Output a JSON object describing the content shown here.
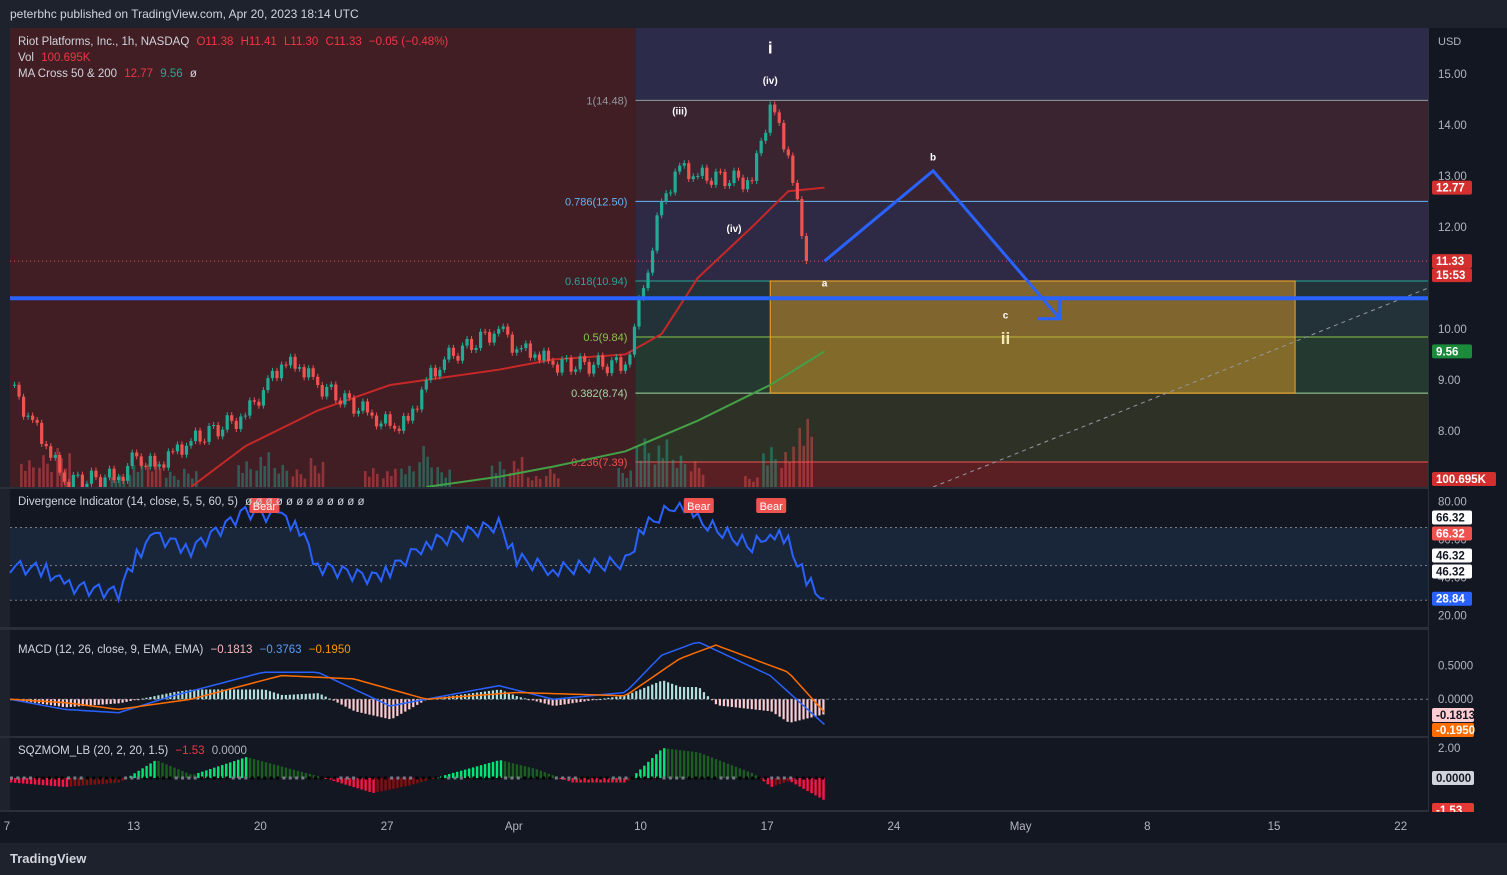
{
  "header": {
    "publisher": "peterbhc published on TradingView.com, Apr 20, 2023 18:14 UTC"
  },
  "footer": {
    "logo": "TradingView"
  },
  "colors": {
    "background": "#131722",
    "up": "#22ab94",
    "down": "#ef5350",
    "ma50": "#c62828",
    "ma200": "#43a047",
    "divergence": "#2962ff",
    "macd": "#2962ff",
    "signal": "#ff6d00",
    "fib_zone": "#f5a623",
    "projection": "#2962ff"
  },
  "main_legend": {
    "symbol": "Riot Platforms, Inc., 1h, NASDAQ",
    "open": "O11.38",
    "high": "H11.41",
    "low": "L11.30",
    "close": "C11.33",
    "change": "−0.05 (−0.48%)",
    "vol_label": "Vol",
    "vol_value": "100.695K",
    "ma_label": "MA Cross 50 & 200",
    "ma50": "12.77",
    "ma200": "9.56",
    "ma_extra": "ø"
  },
  "div_legend": {
    "label": "Divergence Indicator (14, close, 5, 5, 60, 5)",
    "extra": "ø ø ø ø ø ø ø ø ø ø ø ø"
  },
  "macd_legend": {
    "label": "MACD (12, 26, close, 9, EMA, EMA)",
    "hist": "−0.1813",
    "macd": "−0.3763",
    "signal": "−0.1950"
  },
  "sqz_legend": {
    "label": "SQZMOM_LB (20, 2, 20, 1.5)",
    "val": "−1.53",
    "val2": "0.0000"
  },
  "chart_data": [
    {
      "type": "candlestick",
      "title": "Riot Platforms, Inc., 1h, NASDAQ",
      "currency": "USD",
      "price_axis_ticks": [
        8.0,
        9.0,
        10.0,
        11.0,
        12.0,
        13.0,
        14.0,
        15.0
      ],
      "ylim": [
        6.9,
        15.9
      ],
      "x_ticks": [
        "7",
        "13",
        "20",
        "27",
        "Apr",
        "10",
        "17",
        "24",
        "May",
        "8",
        "15",
        "22"
      ],
      "last_price": 11.33,
      "countdown": "15:53",
      "ma50_last": 12.77,
      "ma200_last": 9.56,
      "volume_last": "100.695K",
      "close_path": [
        [
          "Mar 7",
          8.9
        ],
        [
          "Mar 8",
          8.3
        ],
        [
          "Mar 9",
          7.7
        ],
        [
          "Mar 10",
          7.0
        ],
        [
          "Mar 13",
          7.1
        ],
        [
          "Mar 14",
          7.5
        ],
        [
          "Mar 15",
          7.3
        ],
        [
          "Mar 16",
          7.6
        ],
        [
          "Mar 17",
          7.8
        ],
        [
          "Mar 20",
          8.3
        ],
        [
          "Mar 21",
          8.8
        ],
        [
          "Mar 22",
          9.3
        ],
        [
          "Mar 23",
          9.25
        ],
        [
          "Mar 24",
          8.9
        ],
        [
          "Mar 27",
          8.3
        ],
        [
          "Mar 28",
          8.1
        ],
        [
          "Mar 29",
          8.2
        ],
        [
          "Mar 30",
          9.0
        ],
        [
          "Mar 31",
          9.4
        ],
        [
          "Apr 3",
          10.0
        ],
        [
          "Apr 4",
          9.6
        ],
        [
          "Apr 5",
          9.5
        ],
        [
          "Apr 6",
          9.3
        ],
        [
          "Apr 10",
          9.3
        ],
        [
          "Apr 11",
          10.8
        ],
        [
          "Apr 12",
          12.5
        ],
        [
          "Apr 13",
          13.2
        ],
        [
          "Apr 14",
          13.0
        ],
        [
          "Apr 17",
          12.9
        ],
        [
          "Apr 18",
          14.4
        ],
        [
          "Apr 19",
          13.4
        ],
        [
          "Apr 20",
          11.33
        ]
      ],
      "fib_levels": [
        {
          "ratio": "1",
          "price": 14.48,
          "label": "1(14.48)"
        },
        {
          "ratio": "0.786",
          "price": 12.5,
          "label": "0.786(12.50)"
        },
        {
          "ratio": "0.618",
          "price": 10.94,
          "label": "0.618(10.94)"
        },
        {
          "ratio": "0.5",
          "price": 9.84,
          "label": "0.5(9.84)"
        },
        {
          "ratio": "0.382",
          "price": 8.74,
          "label": "0.382(8.74)"
        },
        {
          "ratio": "0.236",
          "price": 7.39,
          "label": "0.236(7.39)"
        }
      ],
      "horizontal_line": 10.6,
      "target_zone": {
        "from_date": "Apr 18",
        "to_date": "May 17",
        "top": 10.94,
        "bottom": 8.74
      },
      "projection": [
        [
          "Apr 21",
          11.33
        ],
        [
          "Apr 27",
          13.1
        ],
        [
          "May 4",
          10.2
        ]
      ],
      "wave_labels": [
        {
          "text": "i",
          "date": "Apr 18",
          "price": 15.4
        },
        {
          "text": "(iv)",
          "date": "Apr 18",
          "price": 14.8
        },
        {
          "text": "(iii)",
          "date": "Apr 13",
          "price": 14.2
        },
        {
          "text": "(iv)",
          "date": "Apr 16",
          "price": 11.9
        },
        {
          "text": "a",
          "date": "Apr 21",
          "price": 10.83
        },
        {
          "text": "b",
          "date": "Apr 27",
          "price": 13.3
        },
        {
          "text": "c",
          "date": "May 1",
          "price": 10.2
        },
        {
          "text": "ii",
          "date": "May 1",
          "price": 9.7
        }
      ]
    },
    {
      "type": "line",
      "title": "Divergence Indicator (14, close, 5, 5, 60, 5)",
      "ylim": [
        15,
        85
      ],
      "ticks": [
        20.0,
        40.0,
        60.0,
        80.0
      ],
      "bands": [
        66.32,
        46.32
      ],
      "last": 28.84,
      "series_points": [
        [
          "Mar 7",
          46
        ],
        [
          "Mar 9",
          44
        ],
        [
          "Mar 10",
          36
        ],
        [
          "Mar 13",
          32
        ],
        [
          "Mar 14",
          52
        ],
        [
          "Mar 15",
          62
        ],
        [
          "Mar 17",
          55
        ],
        [
          "Mar 20",
          75
        ],
        [
          "Mar 22",
          72
        ],
        [
          "Mar 23",
          66
        ],
        [
          "Mar 24",
          46
        ],
        [
          "Mar 27",
          40
        ],
        [
          "Mar 28",
          44
        ],
        [
          "Mar 30",
          58
        ],
        [
          "Apr 3",
          68
        ],
        [
          "Apr 4",
          50
        ],
        [
          "Apr 6",
          44
        ],
        [
          "Apr 10",
          48
        ],
        [
          "Apr 11",
          66
        ],
        [
          "Apr 13",
          80
        ],
        [
          "Apr 14",
          70
        ],
        [
          "Apr 17",
          56
        ],
        [
          "Apr 18",
          64
        ],
        [
          "Apr 19",
          58
        ],
        [
          "Apr 20",
          38
        ],
        [
          "Apr 21",
          28.84
        ]
      ],
      "bear_labels": [
        {
          "text": "Bear",
          "date": "Mar 21"
        },
        {
          "text": "Bear",
          "date": "Apr 14"
        },
        {
          "text": "Bear",
          "date": "Apr 18"
        }
      ]
    },
    {
      "type": "line",
      "title": "MACD (12, 26, close, 9, EMA, EMA)",
      "ticks": [
        0.5,
        0.0
      ],
      "hist_last": -0.1813,
      "macd_last": -0.3763,
      "signal_last": -0.195,
      "macd_points": [
        [
          "Mar 7",
          0.0
        ],
        [
          "Mar 10",
          -0.15
        ],
        [
          "Mar 13",
          -0.2
        ],
        [
          "Mar 16",
          0.05
        ],
        [
          "Mar 21",
          0.4
        ],
        [
          "Mar 24",
          0.4
        ],
        [
          "Mar 28",
          -0.1
        ],
        [
          "Apr 3",
          0.2
        ],
        [
          "Apr 6",
          0.0
        ],
        [
          "Apr 10",
          0.1
        ],
        [
          "Apr 12",
          0.65
        ],
        [
          "Apr 14",
          0.85
        ],
        [
          "Apr 18",
          0.35
        ],
        [
          "Apr 21",
          -0.3763
        ]
      ],
      "signal_points": [
        [
          "Mar 7",
          0.0
        ],
        [
          "Mar 10",
          -0.05
        ],
        [
          "Mar 13",
          -0.15
        ],
        [
          "Mar 17",
          0.0
        ],
        [
          "Mar 22",
          0.35
        ],
        [
          "Mar 26",
          0.3
        ],
        [
          "Mar 30",
          0.0
        ],
        [
          "Apr 4",
          0.1
        ],
        [
          "Apr 10",
          0.05
        ],
        [
          "Apr 13",
          0.6
        ],
        [
          "Apr 15",
          0.8
        ],
        [
          "Apr 19",
          0.4
        ],
        [
          "Apr 21",
          -0.195
        ]
      ]
    },
    {
      "type": "bar",
      "title": "SQZMOM_LB (20, 2, 20, 1.5)",
      "ticks": [
        2.0,
        0.0
      ],
      "last": -1.53,
      "momentum_points": [
        [
          "Mar 7",
          -0.3
        ],
        [
          "Mar 10",
          -0.6
        ],
        [
          "Mar 13",
          -0.3
        ],
        [
          "Mar 15",
          1.2
        ],
        [
          "Mar 17",
          0.2
        ],
        [
          "Mar 20",
          1.4
        ],
        [
          "Mar 24",
          0.1
        ],
        [
          "Mar 27",
          -1.0
        ],
        [
          "Mar 29",
          -0.5
        ],
        [
          "Mar 31",
          0.2
        ],
        [
          "Apr 3",
          1.2
        ],
        [
          "Apr 5",
          0.6
        ],
        [
          "Apr 7",
          -0.3
        ],
        [
          "Apr 10",
          -0.3
        ],
        [
          "Apr 12",
          2.0
        ],
        [
          "Apr 14",
          1.7
        ],
        [
          "Apr 17",
          0.3
        ],
        [
          "Apr 18",
          -0.6
        ],
        [
          "Apr 19",
          -0.2
        ],
        [
          "Apr 21",
          -1.53
        ]
      ]
    }
  ]
}
